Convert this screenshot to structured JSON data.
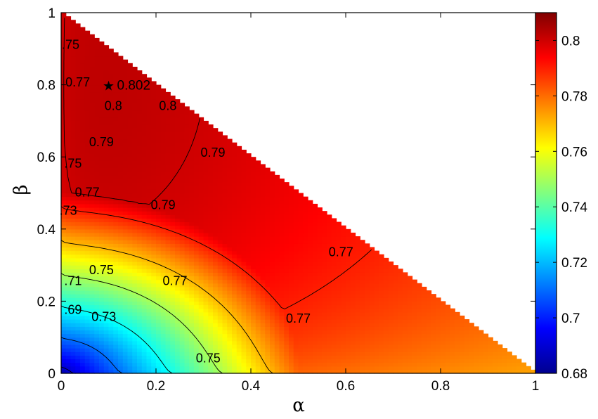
{
  "chart_data": {
    "type": "heatmap",
    "title": "",
    "xlabel": "α",
    "ylabel": "β",
    "xlim": [
      0,
      1
    ],
    "ylim": [
      0,
      1
    ],
    "x_ticks": [
      "0",
      "0.2",
      "0.4",
      "0.6",
      "0.8",
      "1"
    ],
    "y_ticks": [
      "0",
      "0.2",
      "0.4",
      "0.6",
      "0.8",
      "1"
    ],
    "domain": "α + β ≤ 1 (upper-right triangle empty)",
    "colorbar": {
      "colormap": "jet",
      "min": 0.68,
      "max": 0.81,
      "ticks": [
        "0.68",
        "0.7",
        "0.72",
        "0.74",
        "0.76",
        "0.78",
        "0.8"
      ]
    },
    "surface_estimate": {
      "peak": {
        "alpha": 0.1,
        "beta": 0.8,
        "value": 0.802
      },
      "corner_origin_value": 0.68,
      "far_corner_value": 0.762
    },
    "contour_levels": [
      0.69,
      0.71,
      0.73,
      0.75,
      0.77,
      0.79,
      0.8
    ],
    "contour_labels": [
      {
        "text": ".75",
        "alpha": 0.02,
        "beta": 0.9
      },
      {
        "text": "0.77",
        "alpha": 0.035,
        "beta": 0.795
      },
      {
        "text": "0.8",
        "alpha": 0.11,
        "beta": 0.73
      },
      {
        "text": "0.8",
        "alpha": 0.225,
        "beta": 0.73
      },
      {
        "text": "0.79",
        "alpha": 0.085,
        "beta": 0.63
      },
      {
        "text": "0.79",
        "alpha": 0.32,
        "beta": 0.6
      },
      {
        "text": "0.79",
        "alpha": 0.215,
        "beta": 0.455
      },
      {
        "text": ".75",
        "alpha": 0.025,
        "beta": 0.57
      },
      {
        "text": "0.77",
        "alpha": 0.055,
        "beta": 0.49
      },
      {
        "text": ".73",
        "alpha": 0.015,
        "beta": 0.44
      },
      {
        "text": "0.75",
        "alpha": 0.085,
        "beta": 0.275
      },
      {
        "text": "0.77",
        "alpha": 0.24,
        "beta": 0.245
      },
      {
        "text": "0.77",
        "alpha": 0.59,
        "beta": 0.325
      },
      {
        "text": ".71",
        "alpha": 0.025,
        "beta": 0.245
      },
      {
        "text": "0.73",
        "alpha": 0.09,
        "beta": 0.145
      },
      {
        "text": ".69",
        "alpha": 0.025,
        "beta": 0.165
      },
      {
        "text": "0.77",
        "alpha": 0.5,
        "beta": 0.14
      },
      {
        "text": "0.75",
        "alpha": 0.31,
        "beta": 0.03
      }
    ],
    "marker": {
      "symbol": "★",
      "alpha": 0.1,
      "beta": 0.8,
      "label": "0.802"
    }
  }
}
